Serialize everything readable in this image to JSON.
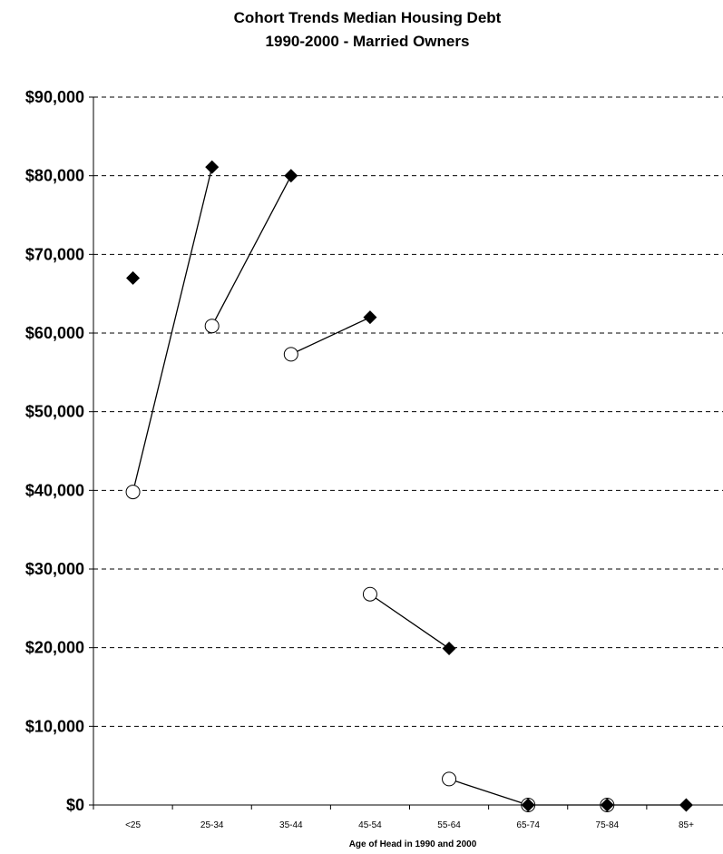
{
  "chart_data": {
    "type": "scatter",
    "title_lines": [
      "Cohort Trends Median Housing Debt",
      "1990-2000 - Married Owners"
    ],
    "xlabel": "Age of Head in 1990 and 2000",
    "ylabel": "",
    "categories": [
      "<25",
      "25-34",
      "35-44",
      "45-54",
      "55-64",
      "65-74",
      "75-84",
      "85+"
    ],
    "y_tick_labels": [
      "$0",
      "$10,000",
      "$20,000",
      "$30,000",
      "$40,000",
      "$50,000",
      "$60,000",
      "$70,000",
      "$80,000",
      "$90,000"
    ],
    "ylim": [
      0,
      90000
    ],
    "y_step": 10000,
    "grid": "horizontal-dashed",
    "series": [
      {
        "marker": "open-circle",
        "values": [
          39800,
          60900,
          57300,
          26800,
          3300,
          0,
          0,
          null
        ]
      },
      {
        "marker": "filled-diamond",
        "values": [
          67000,
          81100,
          80000,
          62000,
          19900,
          0,
          0,
          0
        ]
      }
    ],
    "cohort_links": [
      {
        "from": [
          "<25",
          39800
        ],
        "to": [
          "25-34",
          81100
        ]
      },
      {
        "from": [
          "25-34",
          60900
        ],
        "to": [
          "35-44",
          80000
        ]
      },
      {
        "from": [
          "35-44",
          57300
        ],
        "to": [
          "45-54",
          62000
        ]
      },
      {
        "from": [
          "45-54",
          26800
        ],
        "to": [
          "55-64",
          19900
        ]
      },
      {
        "from": [
          "55-64",
          3300
        ],
        "to": [
          "65-74",
          0
        ]
      },
      {
        "from": [
          "65-74",
          0
        ],
        "to": [
          "75-84",
          0
        ]
      },
      {
        "from": [
          "75-84",
          0
        ],
        "to": [
          "85+",
          0
        ]
      }
    ]
  }
}
